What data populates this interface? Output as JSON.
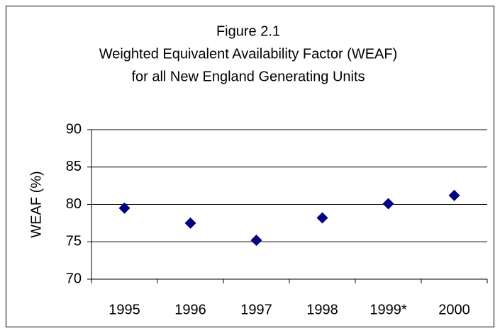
{
  "chart_data": {
    "type": "scatter",
    "title": [
      "Figure 2.1",
      "Weighted Equivalent Availability Factor (WEAF)",
      "for all New England Generating Units"
    ],
    "y_label": "WEAF (%)",
    "categories": [
      "1995",
      "1996",
      "1997",
      "1998",
      "1999*",
      "2000"
    ],
    "values": [
      79.5,
      77.5,
      75.2,
      78.2,
      80.1,
      81.2
    ],
    "color": "#000080",
    "marker": "diamond",
    "ylim": [
      70,
      90
    ],
    "yticks": [
      70,
      75,
      80,
      85,
      90
    ],
    "grid": true
  }
}
